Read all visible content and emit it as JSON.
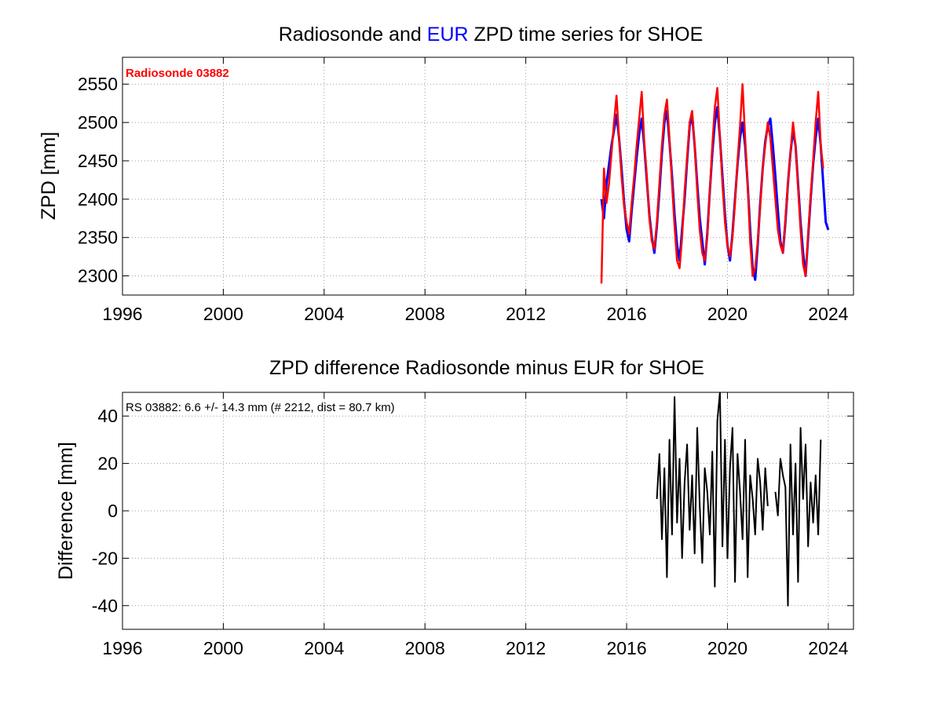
{
  "colors": {
    "radiosonde": "#ff0000",
    "eur": "#0000ff",
    "difference": "#000000",
    "grid": "#9a9a9a"
  },
  "chart_data": [
    {
      "type": "line",
      "title_parts": [
        {
          "text": "Radiosonde and ",
          "color": "#000000"
        },
        {
          "text": "EUR",
          "color": "#0000ff"
        },
        {
          "text": " ZPD time series for SHOE",
          "color": "#000000"
        }
      ],
      "xlabel": "",
      "ylabel": "ZPD [mm]",
      "xlim": [
        1996,
        2025
      ],
      "ylim": [
        2275,
        2585
      ],
      "xticks": [
        1996,
        2000,
        2004,
        2008,
        2012,
        2016,
        2020,
        2024
      ],
      "yticks": [
        2300,
        2350,
        2400,
        2450,
        2500,
        2550
      ],
      "grid": true,
      "annotation": {
        "text": "Radiosonde 03882",
        "color": "#ff0000",
        "placement": "top-left"
      },
      "series": [
        {
          "name": "EUR",
          "color": "#0000ff",
          "x": [
            2015.0,
            2015.1,
            2015.2,
            2015.3,
            2015.4,
            2015.5,
            2015.6,
            2015.7,
            2015.8,
            2015.9,
            2016.0,
            2016.1,
            2016.2,
            2016.3,
            2016.4,
            2016.5,
            2016.6,
            2016.7,
            2016.8,
            2016.9,
            2017.0,
            2017.1,
            2017.2,
            2017.3,
            2017.4,
            2017.5,
            2017.6,
            2017.7,
            2017.8,
            2017.9,
            2018.0,
            2018.1,
            2018.2,
            2018.3,
            2018.4,
            2018.5,
            2018.6,
            2018.7,
            2018.8,
            2018.9,
            2019.0,
            2019.1,
            2019.2,
            2019.3,
            2019.4,
            2019.5,
            2019.6,
            2019.7,
            2019.8,
            2019.9,
            2020.0,
            2020.1,
            2020.2,
            2020.3,
            2020.4,
            2020.5,
            2020.6,
            2020.7,
            2020.8,
            2020.9,
            2021.0,
            2021.1,
            2021.2,
            2021.3,
            2021.4,
            2021.5,
            2021.6,
            2021.7,
            2021.8,
            2021.9,
            2022.0,
            2022.1,
            2022.2,
            2022.3,
            2022.4,
            2022.5,
            2022.6,
            2022.7,
            2022.8,
            2022.9,
            2023.0,
            2023.1,
            2023.2,
            2023.3,
            2023.4,
            2023.5,
            2023.6,
            2023.7,
            2023.8,
            2023.9,
            2024.0
          ],
          "y": [
            2400,
            2375,
            2420,
            2445,
            2470,
            2490,
            2510,
            2480,
            2440,
            2395,
            2360,
            2345,
            2385,
            2420,
            2455,
            2485,
            2505,
            2470,
            2425,
            2380,
            2350,
            2330,
            2365,
            2410,
            2460,
            2500,
            2515,
            2475,
            2430,
            2380,
            2340,
            2320,
            2360,
            2400,
            2450,
            2495,
            2510,
            2470,
            2420,
            2375,
            2345,
            2315,
            2355,
            2410,
            2460,
            2500,
            2520,
            2480,
            2430,
            2380,
            2340,
            2320,
            2355,
            2400,
            2445,
            2480,
            2500,
            2470,
            2420,
            2360,
            2310,
            2295,
            2340,
            2395,
            2440,
            2475,
            2495,
            2505,
            2470,
            2430,
            2385,
            2345,
            2330,
            2370,
            2420,
            2460,
            2490,
            2470,
            2420,
            2370,
            2330,
            2300,
            2350,
            2400,
            2445,
            2480,
            2505,
            2470,
            2420,
            2370,
            2360
          ]
        },
        {
          "name": "Radiosonde 03882",
          "color": "#ff0000",
          "x": [
            2015.0,
            2015.1,
            2015.2,
            2015.3,
            2015.4,
            2015.5,
            2015.6,
            2015.7,
            2015.8,
            2015.9,
            2016.0,
            2016.1,
            2016.2,
            2016.3,
            2016.4,
            2016.5,
            2016.6,
            2016.7,
            2016.8,
            2016.9,
            2017.0,
            2017.1,
            2017.2,
            2017.3,
            2017.4,
            2017.5,
            2017.6,
            2017.7,
            2017.8,
            2017.9,
            2018.0,
            2018.1,
            2018.2,
            2018.3,
            2018.4,
            2018.5,
            2018.6,
            2018.7,
            2018.8,
            2018.9,
            2019.0,
            2019.1,
            2019.2,
            2019.3,
            2019.4,
            2019.5,
            2019.6,
            2019.7,
            2019.8,
            2019.9,
            2020.0,
            2020.1,
            2020.2,
            2020.3,
            2020.4,
            2020.5,
            2020.6,
            2020.7,
            2020.8,
            2020.9,
            2021.0,
            2021.1,
            2021.2,
            2021.3,
            2021.4,
            2021.5,
            2021.6,
            2021.7,
            2021.8,
            2021.9,
            2022.0,
            2022.1,
            2022.2,
            2022.3,
            2022.4,
            2022.5,
            2022.6,
            2022.7,
            2022.8,
            2022.9,
            2023.0,
            2023.1,
            2023.2,
            2023.3,
            2023.4,
            2023.5,
            2023.6,
            2023.7,
            2023.8
          ],
          "y": [
            2290,
            2440,
            2395,
            2420,
            2460,
            2500,
            2535,
            2480,
            2430,
            2390,
            2370,
            2355,
            2395,
            2430,
            2470,
            2505,
            2540,
            2475,
            2430,
            2375,
            2345,
            2335,
            2370,
            2420,
            2470,
            2510,
            2530,
            2480,
            2420,
            2365,
            2320,
            2310,
            2350,
            2410,
            2455,
            2500,
            2515,
            2470,
            2410,
            2360,
            2330,
            2320,
            2350,
            2410,
            2470,
            2520,
            2545,
            2480,
            2420,
            2370,
            2340,
            2325,
            2350,
            2395,
            2450,
            2495,
            2550,
            2480,
            2420,
            2345,
            2300,
            2310,
            2345,
            2390,
            2440,
            2470,
            2500,
            2480,
            2440,
            2400,
            2360,
            2340,
            2330,
            2375,
            2420,
            2460,
            2500,
            2470,
            2415,
            2360,
            2315,
            2300,
            2355,
            2405,
            2450,
            2500,
            2540,
            2470,
            2440
          ]
        }
      ]
    },
    {
      "type": "line",
      "title_parts": [
        {
          "text": "ZPD difference Radiosonde minus EUR for SHOE",
          "color": "#000000"
        }
      ],
      "xlabel": "",
      "ylabel": "Difference [mm]",
      "xlim": [
        1996,
        2025
      ],
      "ylim": [
        -50,
        50
      ],
      "xticks": [
        1996,
        2000,
        2004,
        2008,
        2012,
        2016,
        2020,
        2024
      ],
      "yticks": [
        -40,
        -20,
        0,
        20,
        40
      ],
      "grid": true,
      "annotation": {
        "text": "RS 03882: 6.6 +/- 14.3 mm (# 2212, dist =  80.7 km)",
        "color": "#000000",
        "placement": "top-left"
      },
      "series": [
        {
          "name": "",
          "color": "#000000",
          "x": [
            2017.2,
            2017.3,
            2017.4,
            2017.5,
            2017.6,
            2017.7,
            2017.8,
            2017.9,
            2018.0,
            2018.1,
            2018.2,
            2018.3,
            2018.4,
            2018.5,
            2018.6,
            2018.7,
            2018.8,
            2018.9,
            2019.0,
            2019.1,
            2019.2,
            2019.3,
            2019.4,
            2019.5,
            2019.6,
            2019.7,
            2019.8,
            2019.9,
            2020.0,
            2020.1,
            2020.2,
            2020.3,
            2020.4,
            2020.5,
            2020.6,
            2020.7,
            2020.8,
            2020.9,
            2021.0,
            2021.1,
            2021.2,
            2021.3,
            2021.4,
            2021.5,
            2021.6,
            2021.7,
            2021.8,
            2021.9,
            2022.0,
            2022.1,
            2022.2,
            2022.3,
            2022.4,
            2022.5,
            2022.6,
            2022.7,
            2022.8,
            2022.9,
            2023.0,
            2023.1,
            2023.2,
            2023.3,
            2023.4,
            2023.5,
            2023.6,
            2023.7
          ],
          "y": [
            5,
            24,
            -12,
            18,
            -28,
            30,
            -10,
            48,
            -5,
            22,
            -20,
            12,
            28,
            -8,
            15,
            -18,
            35,
            2,
            -22,
            18,
            8,
            -10,
            25,
            -32,
            38,
            50,
            -15,
            30,
            -20,
            18,
            35,
            -30,
            24,
            8,
            -12,
            30,
            -28,
            15,
            5,
            -10,
            22,
            12,
            -8,
            18,
            2,
            null,
            null,
            8,
            -2,
            22,
            15,
            10,
            -40,
            28,
            -10,
            20,
            -30,
            35,
            5,
            28,
            -15,
            12,
            -5,
            15,
            -10,
            30
          ]
        }
      ]
    }
  ]
}
